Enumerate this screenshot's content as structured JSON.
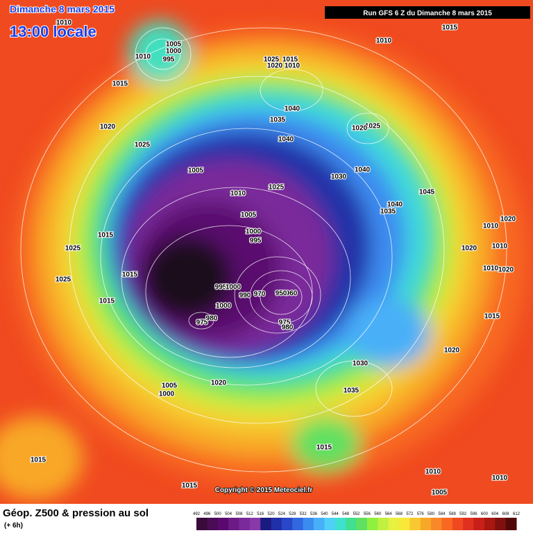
{
  "header": {
    "day": "Dimanche 8 mars 2015",
    "time": "13:00 locale",
    "run": "Run GFS 6 Z du Dimanche 8 mars 2015"
  },
  "copyright": "Copyright © 2015 Meteociel.fr",
  "footer": {
    "title": "Géop. Z500 & pression au sol",
    "subtitle": "(+ 6h)"
  },
  "scale": {
    "labels": [
      492,
      496,
      500,
      504,
      508,
      512,
      516,
      520,
      524,
      528,
      532,
      536,
      540,
      544,
      548,
      552,
      556,
      560,
      564,
      568,
      572,
      576,
      580,
      584,
      588,
      592,
      596,
      600,
      604,
      608,
      612
    ],
    "colors": [
      "#3a0a3a",
      "#4b0b55",
      "#5a0a6e",
      "#6c1a86",
      "#7a2a9a",
      "#8a3aa8",
      "#1a1a80",
      "#2030a8",
      "#2848c8",
      "#3068e0",
      "#3c8cf0",
      "#48b0f8",
      "#50d0f8",
      "#40e0d0",
      "#40e090",
      "#60e060",
      "#90f040",
      "#c0f040",
      "#e8f040",
      "#f8e838",
      "#f8c830",
      "#f8a828",
      "#f88828",
      "#f86820",
      "#f04820",
      "#e03020",
      "#c82018",
      "#a81810",
      "#801010",
      "#500808"
    ]
  },
  "isobar_labels": [
    "1010",
    "1010",
    "1015",
    "1005",
    "1000",
    "995",
    "1010",
    "1025",
    "1015",
    "1020",
    "1010",
    "1015",
    "1020",
    "1040",
    "1035",
    "1025",
    "1020",
    "1040",
    "1025",
    "1005",
    "1030",
    "1040",
    "1010",
    "1025",
    "1045",
    "1040",
    "1035",
    "1005",
    "1015",
    "1000",
    "995",
    "1025",
    "1010",
    "1020",
    "1020",
    "1010",
    "1015",
    "1010",
    "1020",
    "1025",
    "995",
    "1000",
    "990",
    "970",
    "960",
    "950",
    "1015",
    "1000",
    "975",
    "980",
    "975",
    "980",
    "1015",
    "1020",
    "1030",
    "1005",
    "1000",
    "1020",
    "1035",
    "1015",
    "1015",
    "1010",
    "1010",
    "1005",
    "1015"
  ]
}
